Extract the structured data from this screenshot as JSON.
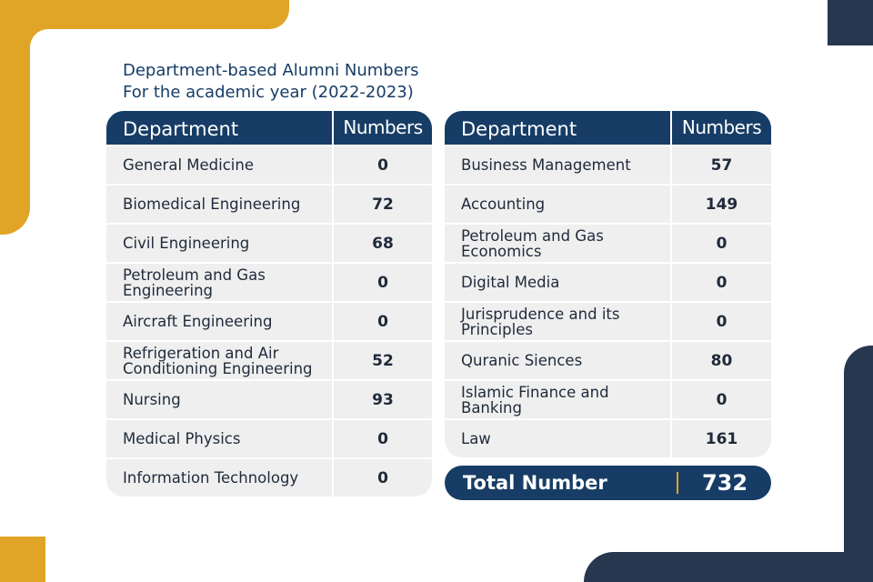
{
  "title": {
    "line1": "Department-based Alumni Numbers",
    "line2": "For the academic year (2022-2023)"
  },
  "colors": {
    "navy": "#173d66",
    "dark": "#283750",
    "yellow": "#e0a526",
    "row": "#efefef"
  },
  "left_table": {
    "headers": [
      "Department",
      "Numbers"
    ],
    "rows": [
      {
        "dept": "General Medicine",
        "num": "0"
      },
      {
        "dept": "Biomedical Engineering",
        "num": "72"
      },
      {
        "dept": "Civil Engineering",
        "num": "68"
      },
      {
        "dept": "Petroleum and Gas Engineering",
        "num": "0"
      },
      {
        "dept": "Aircraft Engineering",
        "num": "0"
      },
      {
        "dept": "Refrigeration and Air Conditioning Engineering",
        "num": "52"
      },
      {
        "dept": "Nursing",
        "num": "93"
      },
      {
        "dept": "Medical Physics",
        "num": "0"
      },
      {
        "dept": "Information Technology",
        "num": "0"
      }
    ]
  },
  "right_table": {
    "headers": [
      "Department",
      "Numbers"
    ],
    "rows": [
      {
        "dept": "Business Management",
        "num": "57"
      },
      {
        "dept": "Accounting",
        "num": "149"
      },
      {
        "dept": "Petroleum and Gas Economics",
        "num": "0"
      },
      {
        "dept": "Digital Media",
        "num": "0"
      },
      {
        "dept": "Jurisprudence and its Principles",
        "num": "0"
      },
      {
        "dept": "Quranic Siences",
        "num": "80"
      },
      {
        "dept": "Islamic Finance and Banking",
        "num": "0"
      },
      {
        "dept": "Law",
        "num": "161"
      }
    ]
  },
  "total": {
    "label": "Total Number",
    "value": "732"
  }
}
